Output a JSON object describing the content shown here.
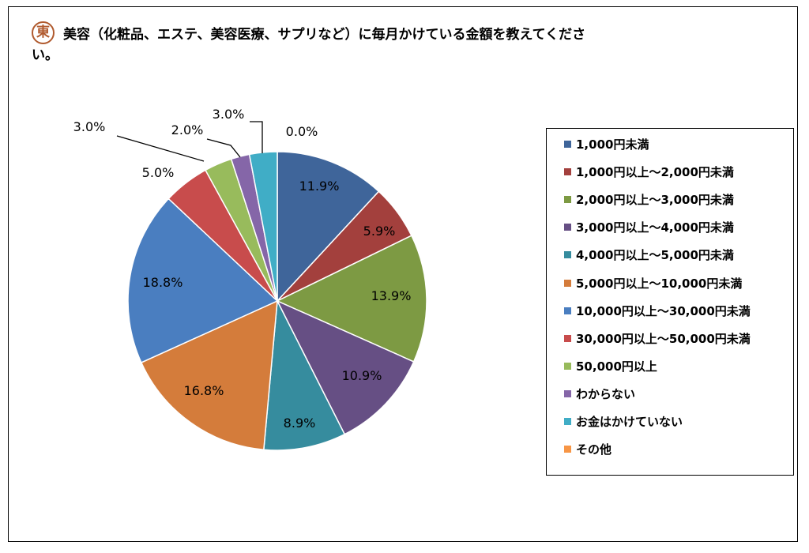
{
  "logo_text": "東",
  "title_line1": "美容（化粧品、エステ、美容医療、サプリなど）に毎月かけている金額を教えてくださ",
  "title_line2": "い。",
  "chart_data": {
    "type": "pie",
    "title": "美容（化粧品、エステ、美容医療、サプリなど）に毎月かけている金額を教えてください。",
    "legend_position": "right",
    "slices": [
      {
        "label": "1,000円未満",
        "value": 11.9,
        "display": "11.9%",
        "color": "#3f659a"
      },
      {
        "label": "1,000円以上～2,000円未満",
        "value": 5.9,
        "display": "5.9%",
        "color": "#a3403d"
      },
      {
        "label": "2,000円以上～3,000円未満",
        "value": 13.9,
        "display": "13.9%",
        "color": "#7d9a43"
      },
      {
        "label": "3,000円以上～4,000円未満",
        "value": 10.9,
        "display": "10.9%",
        "color": "#664f84"
      },
      {
        "label": "4,000円以上～5,000円未満",
        "value": 8.9,
        "display": "8.9%",
        "color": "#368c9e"
      },
      {
        "label": "5,000円以上～10,000円未満",
        "value": 16.8,
        "display": "16.8%",
        "color": "#d47c3b"
      },
      {
        "label": "10,000円以上～30,000円未満",
        "value": 18.8,
        "display": "18.8%",
        "color": "#4a7ec0"
      },
      {
        "label": "30,000円以上～50,000円未満",
        "value": 5.0,
        "display": "5.0%",
        "color": "#c84c4c"
      },
      {
        "label": "50,000円以上",
        "value": 3.0,
        "display": "3.0%",
        "color": "#98bb5c"
      },
      {
        "label": "わからない",
        "value": 2.0,
        "display": "2.0%",
        "color": "#8566a8"
      },
      {
        "label": "お金はかけていない",
        "value": 3.0,
        "display": "3.0%",
        "color": "#40adc6"
      },
      {
        "label": "その他",
        "value": 0.0,
        "display": "0.0%",
        "color": "#f79646"
      }
    ]
  }
}
